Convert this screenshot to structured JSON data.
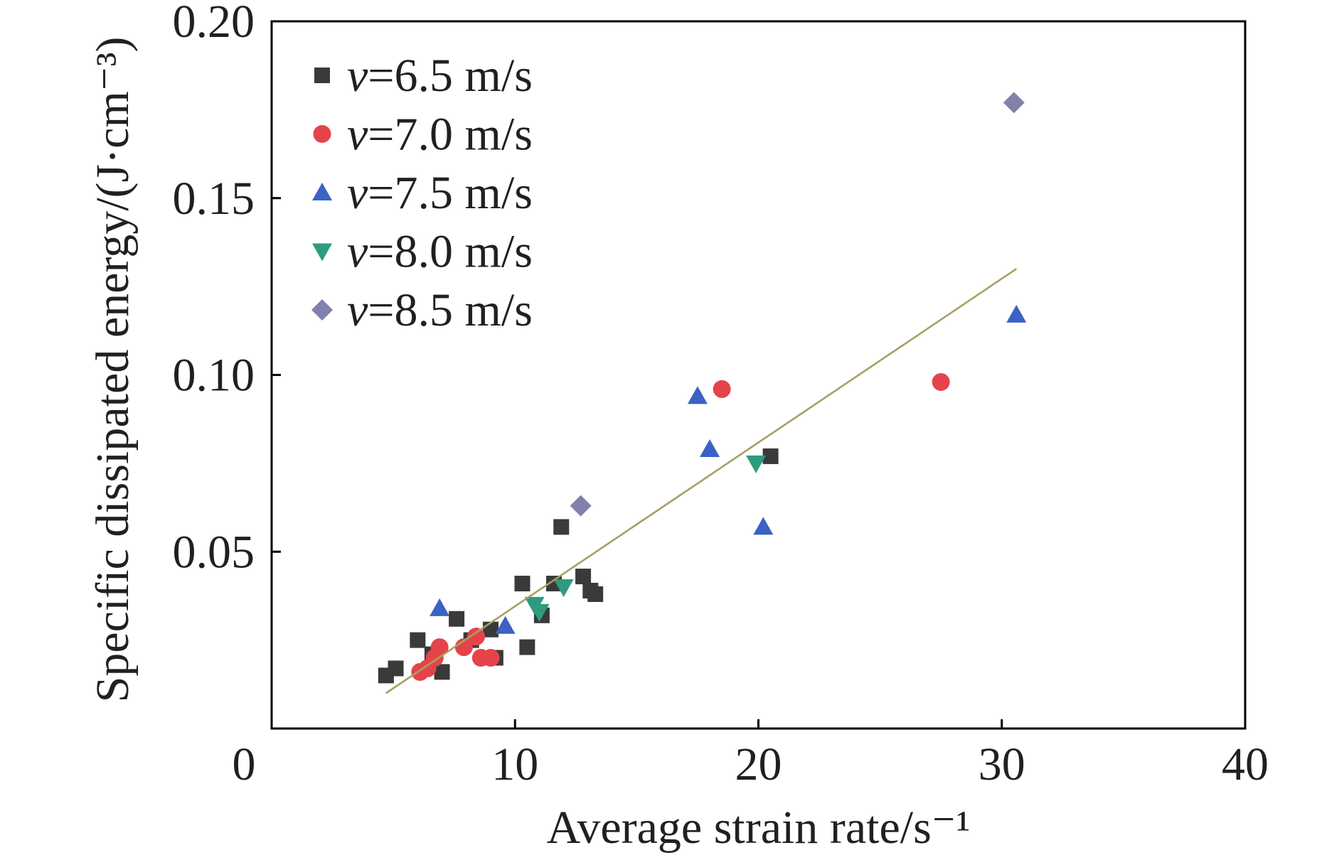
{
  "chart_data": {
    "type": "scatter",
    "xlabel": "Average strain rate/s⁻¹",
    "ylabel": "Specific dissipated energy/(J·cm⁻³)",
    "xlim": [
      0,
      40
    ],
    "ylim": [
      0,
      0.2
    ],
    "x_ticks": [
      "0",
      "10",
      "20",
      "30",
      "40"
    ],
    "y_ticks": [
      "0.05",
      "0.10",
      "0.15",
      "0.20"
    ],
    "grid": false,
    "legend_position": "top-left",
    "series": [
      {
        "name": "v=6.5 m/s",
        "marker": "square",
        "color": "#3a3a3a",
        "points": [
          [
            4.7,
            0.015
          ],
          [
            5.1,
            0.017
          ],
          [
            6.0,
            0.025
          ],
          [
            6.6,
            0.021
          ],
          [
            7.0,
            0.016
          ],
          [
            7.6,
            0.031
          ],
          [
            8.2,
            0.025
          ],
          [
            9.0,
            0.028
          ],
          [
            9.2,
            0.02
          ],
          [
            10.3,
            0.041
          ],
          [
            10.5,
            0.023
          ],
          [
            11.1,
            0.032
          ],
          [
            11.6,
            0.041
          ],
          [
            11.9,
            0.057
          ],
          [
            12.8,
            0.043
          ],
          [
            13.1,
            0.039
          ],
          [
            13.3,
            0.038
          ],
          [
            20.5,
            0.077
          ]
        ]
      },
      {
        "name": "v=7.0 m/s",
        "marker": "circle",
        "color": "#e5434b",
        "points": [
          [
            6.1,
            0.016
          ],
          [
            6.4,
            0.017
          ],
          [
            6.7,
            0.02
          ],
          [
            6.9,
            0.023
          ],
          [
            7.9,
            0.023
          ],
          [
            8.4,
            0.026
          ],
          [
            8.6,
            0.02
          ],
          [
            9.0,
            0.02
          ],
          [
            18.5,
            0.096
          ],
          [
            27.5,
            0.098
          ]
        ]
      },
      {
        "name": "v=7.5 m/s",
        "marker": "triangle-up",
        "color": "#3b62c4",
        "points": [
          [
            6.9,
            0.034
          ],
          [
            9.6,
            0.029
          ],
          [
            17.5,
            0.094
          ],
          [
            18.0,
            0.079
          ],
          [
            20.2,
            0.057
          ],
          [
            30.6,
            0.117
          ]
        ]
      },
      {
        "name": "v=8.0 m/s",
        "marker": "triangle-down",
        "color": "#2e9b7f",
        "points": [
          [
            10.8,
            0.035
          ],
          [
            11.0,
            0.033
          ],
          [
            12.0,
            0.04
          ],
          [
            19.9,
            0.075
          ]
        ]
      },
      {
        "name": "v=8.5 m/s",
        "marker": "diamond",
        "color": "#8181ab",
        "points": [
          [
            12.7,
            0.063
          ],
          [
            30.5,
            0.177
          ]
        ]
      }
    ],
    "fit_line": {
      "color": "#a6a25c",
      "points": [
        [
          4.7,
          0.01
        ],
        [
          30.6,
          0.13
        ]
      ]
    }
  }
}
